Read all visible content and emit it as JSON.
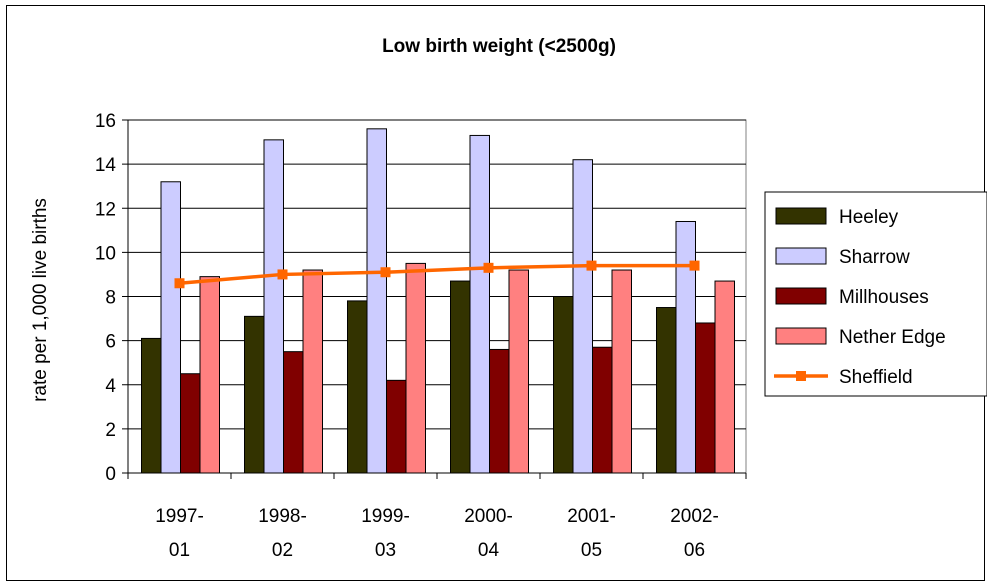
{
  "chart_data": {
    "type": "bar",
    "title": "Low birth weight (<2500g)",
    "ylabel": "rate per 1,000 live births",
    "xlabel": "",
    "categories": [
      [
        "1997-",
        "01"
      ],
      [
        "1998-",
        "02"
      ],
      [
        "1999-",
        "03"
      ],
      [
        "2000-",
        "04"
      ],
      [
        "2001-",
        "05"
      ],
      [
        "2002-",
        "06"
      ]
    ],
    "ylim": [
      0,
      16
    ],
    "yticks": [
      0,
      2,
      4,
      6,
      8,
      10,
      12,
      14,
      16
    ],
    "grid": true,
    "legend_position": "right",
    "series": [
      {
        "name": "Heeley",
        "kind": "bar",
        "color": "#333300",
        "values": [
          6.1,
          7.1,
          7.8,
          8.7,
          8.0,
          7.5
        ]
      },
      {
        "name": "Sharrow",
        "kind": "bar",
        "color": "#ccccff",
        "values": [
          13.2,
          15.1,
          15.6,
          15.3,
          14.2,
          11.4
        ]
      },
      {
        "name": "Millhouses",
        "kind": "bar",
        "color": "#800000",
        "values": [
          4.5,
          5.5,
          4.2,
          5.6,
          5.7,
          6.8
        ]
      },
      {
        "name": "Nether Edge",
        "kind": "bar",
        "color": "#ff8080",
        "values": [
          8.9,
          9.2,
          9.5,
          9.2,
          9.2,
          8.7
        ]
      },
      {
        "name": "Sheffield",
        "kind": "line",
        "color": "#ff6600",
        "values": [
          8.6,
          9.0,
          9.1,
          9.3,
          9.4,
          9.4
        ]
      }
    ]
  }
}
